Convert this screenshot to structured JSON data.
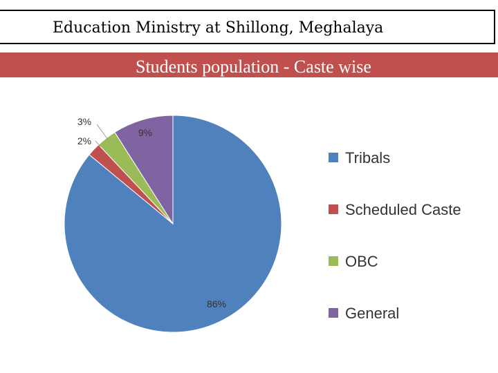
{
  "header": {
    "title": "Education Ministry at Shillong, Meghalaya"
  },
  "banner": {
    "subtitle": "Students population - Caste wise",
    "color": "#c0504d"
  },
  "chart_data": {
    "type": "pie",
    "title": "Students population - Caste wise",
    "categories": [
      "Tribals",
      "Scheduled Caste",
      "OBC",
      "General"
    ],
    "values": [
      86,
      2,
      3,
      9
    ],
    "labels": [
      "86%",
      "2%",
      "3%",
      "9%"
    ],
    "colors": [
      "#4f81bd",
      "#c0504d",
      "#9bbb59",
      "#8064a2"
    ],
    "legend_position": "right"
  }
}
